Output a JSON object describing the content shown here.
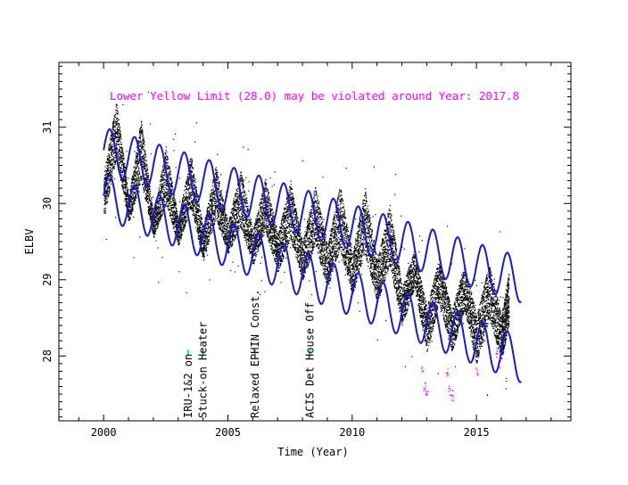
{
  "chart_data": {
    "type": "scatter",
    "xlabel": "Time (Year)",
    "ylabel": "ELBV",
    "xlim": [
      1998.2,
      2018.8
    ],
    "ylim": [
      27.15,
      31.85
    ],
    "x_ticks": [
      2000,
      2005,
      2010,
      2015
    ],
    "y_ticks": [
      28,
      29,
      30,
      31
    ],
    "grid": false,
    "legend": "none",
    "colors": {
      "data": "#000000",
      "envelope": "#1a1ad6",
      "annotation": "#ff00ff",
      "event_marker": "#00d8d8",
      "frame": "#000000"
    },
    "annotation": "Lower Yellow  Limit (28.0) may be violated around Year: 2017.8",
    "events": [
      {
        "x": 2003.4,
        "label": "IRU-1&2 on"
      },
      {
        "x": 2004.0,
        "label": "Stuck-on Heater"
      },
      {
        "x": 2006.1,
        "label": "Relaxed EPHIN Const."
      },
      {
        "x": 2008.3,
        "label": "ACIS Det House Off"
      }
    ],
    "series": [
      {
        "role": "data envelope (daily spread)",
        "x": [
          2000.0,
          2000.5,
          2001.0,
          2001.5,
          2002.0,
          2002.5,
          2003.0,
          2003.5,
          2004.0,
          2004.5,
          2005.0,
          2005.5,
          2006.0,
          2006.5,
          2007.0,
          2007.5,
          2008.0,
          2008.5,
          2009.0,
          2009.5,
          2010.0,
          2010.5,
          2011.0,
          2011.5,
          2012.0,
          2012.5,
          2013.0,
          2013.5,
          2014.0,
          2014.5,
          2015.0,
          2015.5,
          2016.0,
          2016.3
        ],
        "y_high": [
          30.4,
          31.35,
          30.1,
          31.1,
          29.85,
          30.75,
          29.8,
          30.65,
          29.7,
          30.5,
          29.75,
          30.45,
          29.65,
          30.35,
          29.6,
          30.3,
          29.5,
          30.25,
          29.45,
          30.25,
          29.35,
          30.2,
          29.25,
          30.0,
          28.9,
          29.4,
          28.65,
          29.3,
          28.6,
          29.2,
          28.55,
          29.2,
          28.55,
          29.1
        ],
        "y_low": [
          29.8,
          30.6,
          29.75,
          30.3,
          29.55,
          30.0,
          29.45,
          29.95,
          29.25,
          29.8,
          29.35,
          29.7,
          29.2,
          29.65,
          29.1,
          29.55,
          29.0,
          29.45,
          28.9,
          29.4,
          28.8,
          29.35,
          28.7,
          29.2,
          28.4,
          28.9,
          28.05,
          28.7,
          28.05,
          28.6,
          27.9,
          28.5,
          27.95,
          28.4
        ]
      },
      {
        "role": "upper envelope line",
        "x0": 2000.0,
        "x1": 2016.8,
        "y_start": 30.7,
        "y_end": 29.0,
        "amplitude": 0.3,
        "period": 1.0
      },
      {
        "role": "lower envelope line",
        "x0": 2000.0,
        "x1": 2016.8,
        "y_start": 30.1,
        "y_end": 27.95,
        "amplitude": 0.3,
        "period": 1.0
      },
      {
        "role": "violating points",
        "x": [
          2012.8,
          2012.9,
          2013.0,
          2013.8,
          2013.9,
          2014.0,
          2014.9,
          2015.0,
          2015.8,
          2015.9
        ],
        "y": [
          27.85,
          27.6,
          27.5,
          27.8,
          27.55,
          27.45,
          28.0,
          27.8,
          28.05,
          27.9
        ]
      }
    ]
  }
}
